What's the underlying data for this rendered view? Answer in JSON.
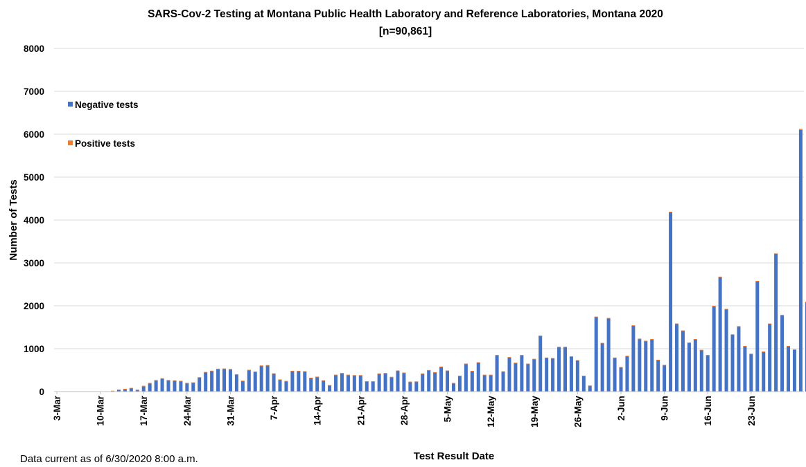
{
  "chart_data": {
    "type": "bar",
    "stacked": true,
    "title": "SARS-Cov-2 Testing at Montana Public Health Laboratory and Reference Laboratories, Montana 2020",
    "subtitle": "[n=90,861]",
    "xlabel": "Test Result Date",
    "ylabel": "Number of Tests",
    "ylim": [
      0,
      8000
    ],
    "yticks": [
      "0",
      "1000",
      "2000",
      "3000",
      "4000",
      "5000",
      "6000",
      "7000",
      "8000"
    ],
    "grid": "horizontal",
    "legend_position": "top-left",
    "x_tick_labels": [
      "3-Mar",
      "10-Mar",
      "17-Mar",
      "24-Mar",
      "31-Mar",
      "7-Apr",
      "14-Apr",
      "21-Apr",
      "28-Apr",
      "5-May",
      "12-May",
      "19-May",
      "26-May",
      "2-Jun",
      "9-Jun",
      "16-Jun",
      "23-Jun"
    ],
    "x_start_date": "2020-03-03",
    "x_end_date": "2020-06-30",
    "series": [
      {
        "name": "Negative tests",
        "color": "#4472C4",
        "values": [
          0,
          0,
          0,
          0,
          0,
          0,
          0,
          0,
          5,
          15,
          40,
          55,
          75,
          40,
          120,
          185,
          255,
          300,
          260,
          255,
          245,
          200,
          210,
          330,
          450,
          480,
          525,
          530,
          520,
          400,
          250,
          500,
          460,
          600,
          610,
          420,
          280,
          245,
          480,
          480,
          470,
          320,
          345,
          260,
          150,
          390,
          430,
          390,
          380,
          380,
          240,
          240,
          420,
          430,
          340,
          490,
          440,
          230,
          235,
          420,
          500,
          450,
          580,
          490,
          200,
          370,
          650,
          480,
          680,
          390,
          390,
          850,
          470,
          800,
          670,
          850,
          650,
          760,
          1300,
          790,
          780,
          1040,
          1040,
          820,
          730,
          370,
          140,
          1740,
          1130,
          1710,
          790,
          570,
          830,
          1540,
          1230,
          1180,
          1220,
          740,
          620,
          4180,
          1580,
          1420,
          1140,
          1220,
          970,
          850,
          1990,
          2670,
          1920,
          1330,
          1520,
          1060,
          880,
          2570,
          930,
          1580,
          3210,
          1780,
          1060,
          980,
          6100,
          2080
        ]
      },
      {
        "name": "Positive tests",
        "color": "#ED7D31",
        "values": [
          0,
          0,
          0,
          0,
          0,
          0,
          0,
          0,
          2,
          5,
          8,
          10,
          12,
          5,
          15,
          18,
          15,
          12,
          10,
          8,
          6,
          4,
          5,
          6,
          8,
          8,
          9,
          8,
          7,
          5,
          4,
          8,
          8,
          9,
          8,
          6,
          4,
          3,
          5,
          5,
          5,
          3,
          3,
          3,
          2,
          3,
          4,
          3,
          3,
          3,
          2,
          2,
          3,
          3,
          3,
          3,
          3,
          2,
          2,
          3,
          3,
          3,
          3,
          3,
          2,
          2,
          3,
          3,
          3,
          2,
          2,
          4,
          3,
          4,
          3,
          4,
          3,
          3,
          6,
          4,
          3,
          5,
          5,
          4,
          3,
          2,
          1,
          8,
          6,
          7,
          4,
          3,
          4,
          6,
          5,
          5,
          5,
          3,
          3,
          12,
          8,
          6,
          5,
          6,
          4,
          4,
          9,
          10,
          8,
          6,
          6,
          5,
          4,
          10,
          4,
          7,
          12,
          8,
          5,
          4,
          25,
          15
        ]
      }
    ]
  },
  "footer": {
    "note": "Data current as of 6/30/2020 8:00 a.m."
  }
}
